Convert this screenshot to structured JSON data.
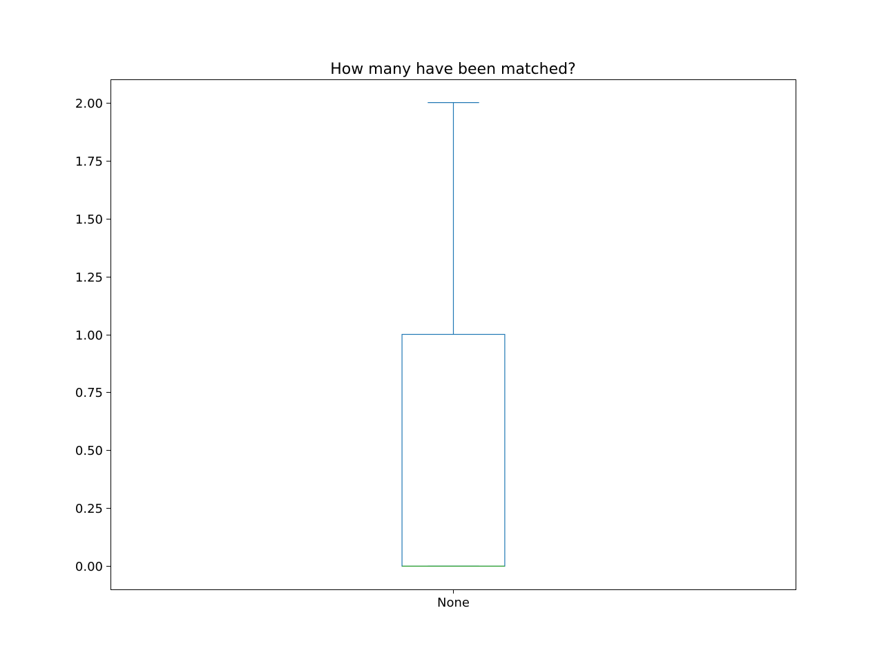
{
  "chart_data": {
    "type": "box",
    "title": "How many have been matched?",
    "xlabel": "",
    "ylabel": "",
    "categories": [
      "None"
    ],
    "boxes": [
      {
        "category": "None",
        "whisker_low": 0.0,
        "q1": 0.0,
        "median": 0.0,
        "q3": 1.0,
        "whisker_high": 2.0
      }
    ],
    "ylim": [
      -0.1,
      2.1
    ],
    "y_ticks": [
      0.0,
      0.25,
      0.5,
      0.75,
      1.0,
      1.25,
      1.5,
      1.75,
      2.0
    ],
    "y_tick_labels": [
      "0.00",
      "0.25",
      "0.50",
      "0.75",
      "1.00",
      "1.25",
      "1.50",
      "1.75",
      "2.00"
    ],
    "grid": false,
    "colors": {
      "box": "#1f77b4",
      "median": "#2ca02c",
      "axes": "#000000"
    }
  }
}
